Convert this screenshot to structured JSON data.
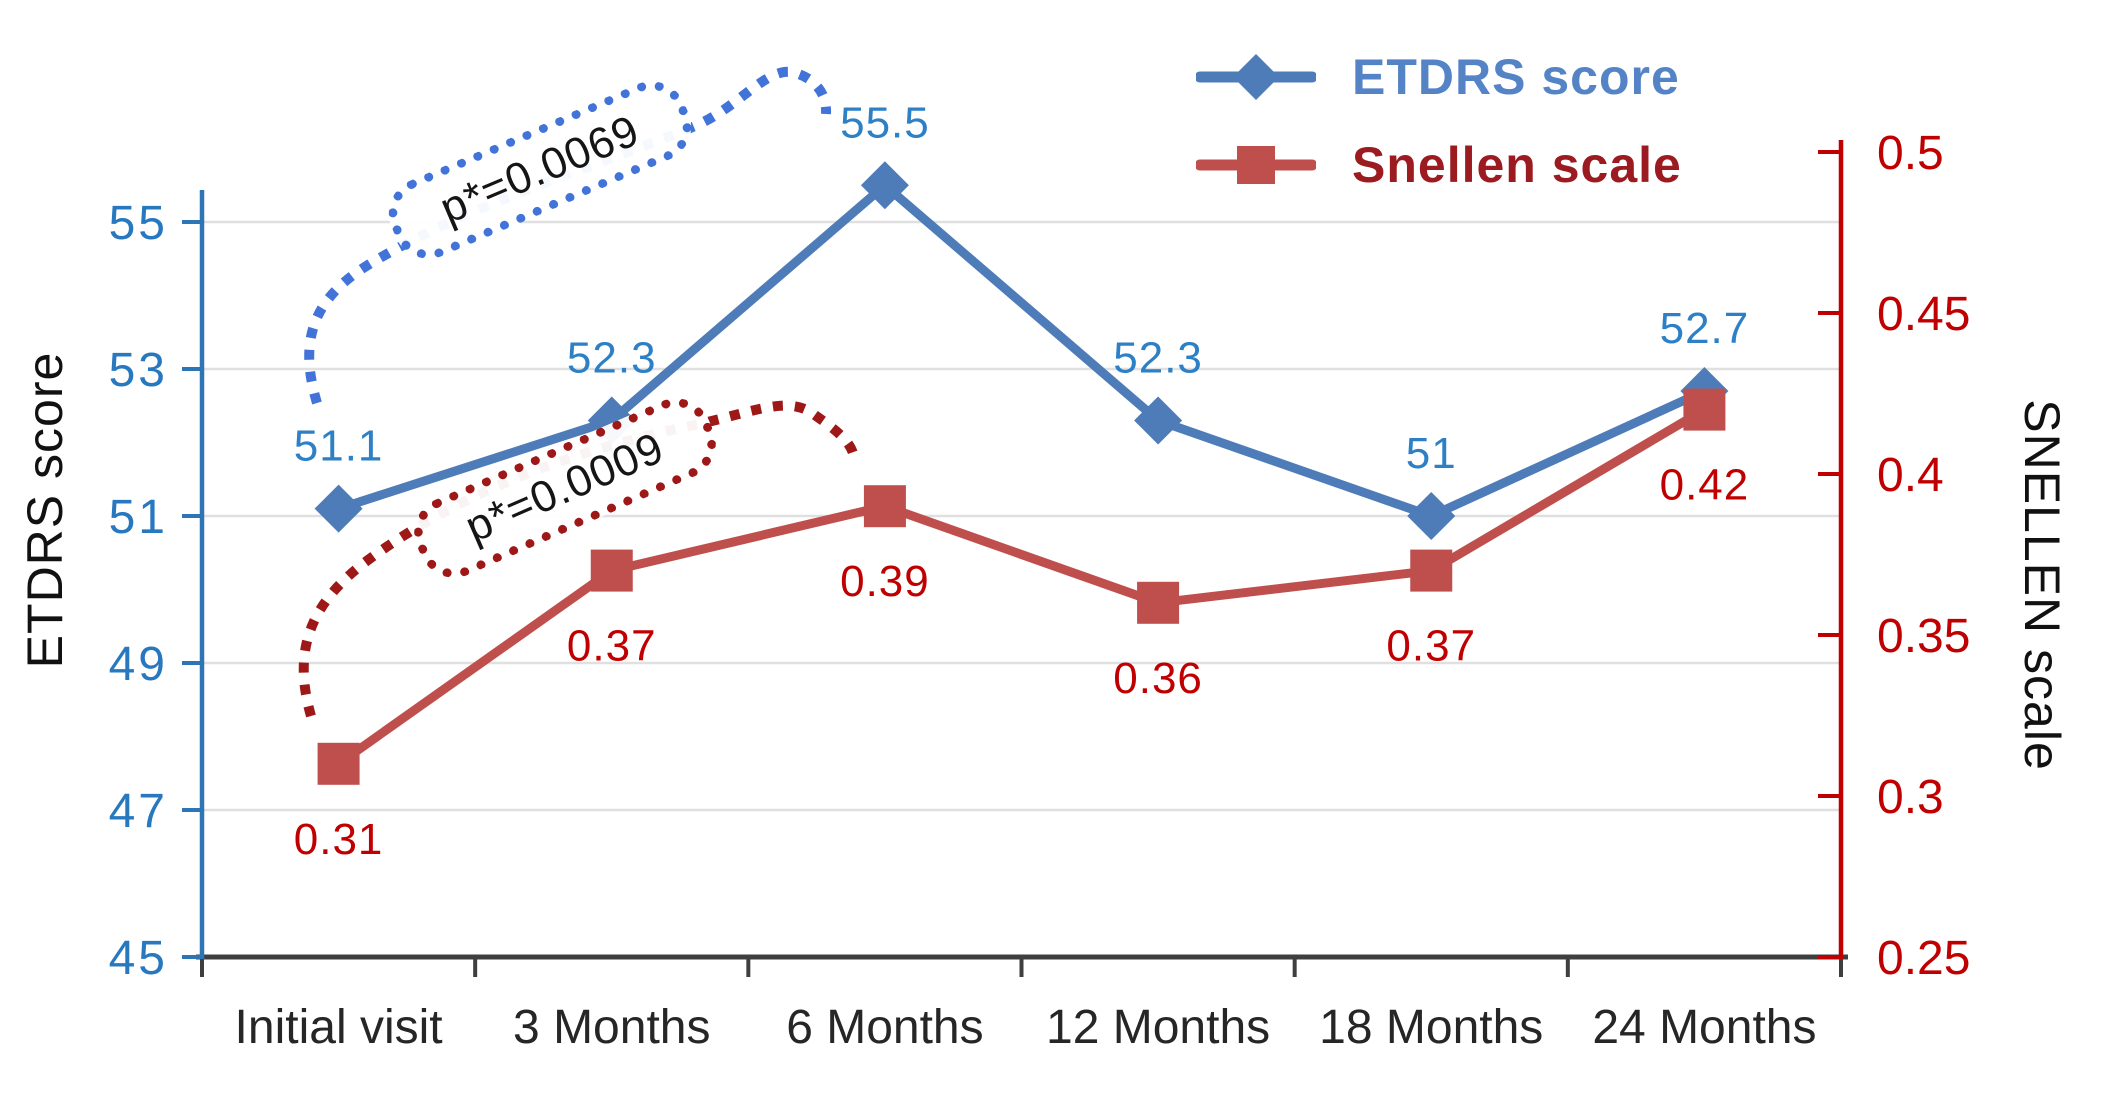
{
  "chart_data": {
    "type": "line",
    "title": "",
    "categories": [
      "Initial visit",
      "3 Months",
      "6 Months",
      "12 Months",
      "18 Months",
      "24 Months"
    ],
    "series": [
      {
        "name": "ETDRS score",
        "axis": "left",
        "marker": "diamond",
        "color": "#4e7cb8",
        "label_color": "#2d80c6",
        "values": [
          51.1,
          52.3,
          55.5,
          52.3,
          51,
          52.7
        ],
        "value_labels": [
          "51.1",
          "52.3",
          "55.5",
          "52.3",
          "51",
          "52.7"
        ]
      },
      {
        "name": "Snellen scale",
        "axis": "right",
        "marker": "square",
        "color": "#bf4f4c",
        "label_color": "#c00000",
        "values": [
          0.31,
          0.37,
          0.39,
          0.36,
          0.37,
          0.42
        ],
        "value_labels": [
          "0.31",
          "0.37",
          "0.39",
          "0.36",
          "0.37",
          "0.42"
        ]
      }
    ],
    "left_axis": {
      "title": "ETDRS score",
      "min": 45,
      "max": 56.5,
      "ticks": [
        45,
        47,
        49,
        51,
        53,
        55
      ],
      "tick_labels": [
        "45",
        "47",
        "49",
        "51",
        "53",
        "55"
      ],
      "axis_color": "#2e75b6",
      "tick_label_color": "#2878c0"
    },
    "right_axis": {
      "title": "SNELLEN scale",
      "min": 0.25,
      "max": 0.5,
      "ticks": [
        0.25,
        0.3,
        0.35,
        0.4,
        0.45,
        0.5
      ],
      "tick_labels": [
        "0.25",
        "0.3",
        "0.35",
        "0.4",
        "0.45",
        "0.5"
      ],
      "axis_color": "#c00000",
      "tick_label_color": "#c00000"
    },
    "x_axis": {
      "color": "#3f3f3f",
      "tick_label_color": "#262626"
    },
    "grid": true,
    "grid_color": "#e0e0e0",
    "legend": {
      "position": "top-right",
      "items": [
        {
          "label": "ETDRS score",
          "text_color": "#5584c6",
          "marker": "diamond",
          "marker_color": "#4e7cb8"
        },
        {
          "label": "Snellen scale",
          "text_color": "#9c1b21",
          "marker": "square",
          "marker_color": "#bf4f4c"
        }
      ]
    },
    "annotations": [
      {
        "text": "p*=0.0069",
        "color": "#4273d8",
        "series": "ETDRS score",
        "connects": [
          "Initial visit",
          "6 Months"
        ]
      },
      {
        "text": "p*=0.0009",
        "color": "#9e1818",
        "series": "Snellen scale",
        "connects": [
          "Initial visit",
          "6 Months"
        ]
      }
    ]
  }
}
